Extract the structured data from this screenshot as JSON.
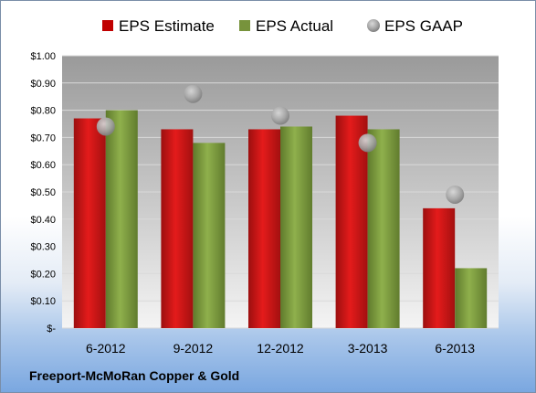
{
  "chart_data": {
    "type": "bar",
    "categories": [
      "6-2012",
      "9-2012",
      "12-2012",
      "3-2013",
      "6-2013"
    ],
    "series": [
      {
        "name": "EPS Estimate",
        "kind": "bar",
        "color": "#c00000",
        "values": [
          0.77,
          0.73,
          0.73,
          0.78,
          0.44
        ]
      },
      {
        "name": "EPS Actual",
        "kind": "bar",
        "color": "#77933c",
        "values": [
          0.8,
          0.68,
          0.74,
          0.73,
          0.22
        ]
      },
      {
        "name": "EPS GAAP",
        "kind": "scatter",
        "color": "#a6a6a6",
        "values": [
          0.74,
          0.86,
          0.78,
          0.68,
          0.49
        ]
      }
    ],
    "yticks": [
      "$-",
      "$0.10",
      "$0.20",
      "$0.30",
      "$0.40",
      "$0.50",
      "$0.60",
      "$0.70",
      "$0.80",
      "$0.90",
      "$1.00"
    ],
    "ylim": [
      0,
      1.0
    ],
    "grid": true,
    "legend": "top"
  },
  "footer": {
    "company": "Freeport-McMoRan Copper & Gold"
  }
}
